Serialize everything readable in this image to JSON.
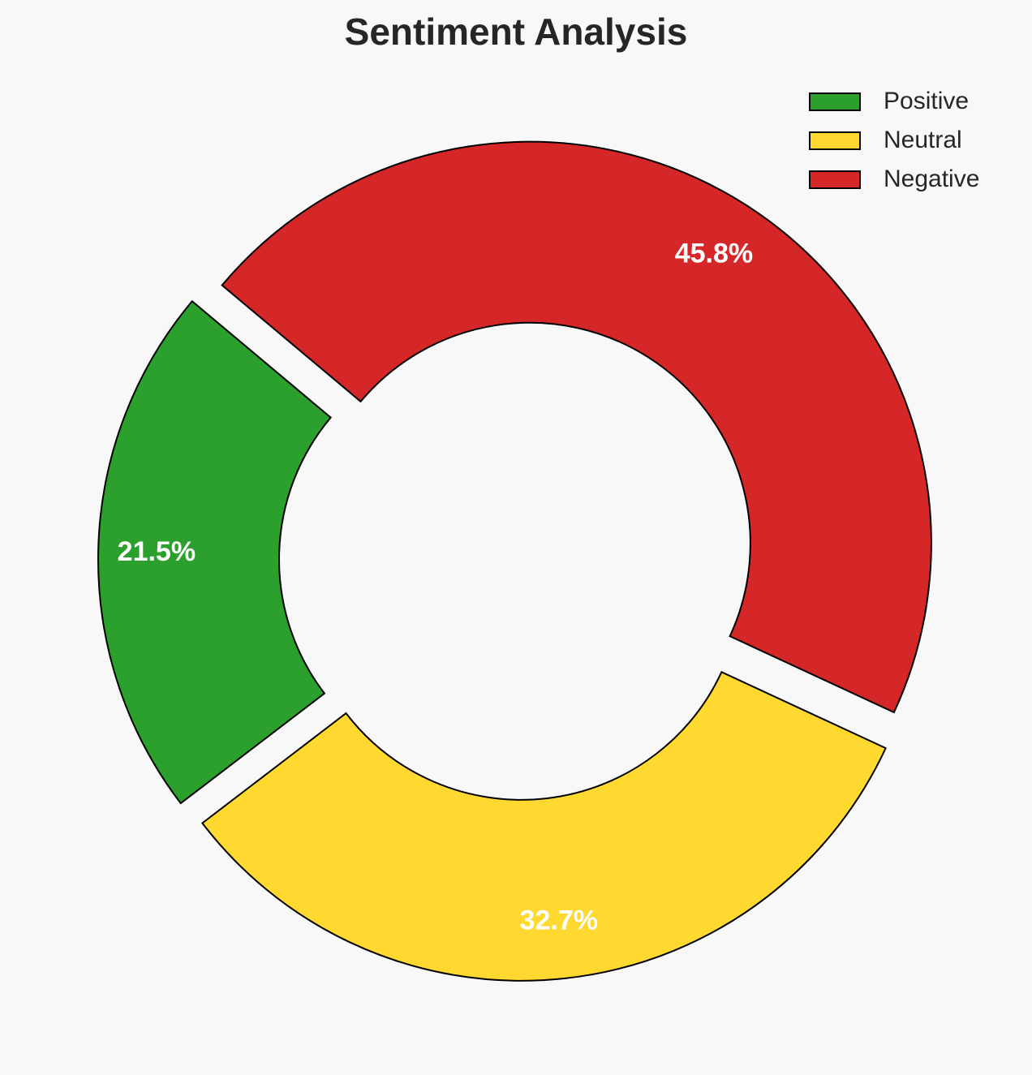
{
  "chart_data": {
    "type": "pie",
    "style": "donut",
    "title": "Sentiment Analysis",
    "categories": [
      "Positive",
      "Neutral",
      "Negative"
    ],
    "values": [
      21.5,
      32.7,
      45.8
    ],
    "labels": [
      "21.5%",
      "32.7%",
      "45.8%"
    ],
    "colors": [
      "#2ca02c",
      "#ffd92f",
      "#d62728"
    ],
    "exploded": true,
    "legend": {
      "placement": "top-right",
      "entries": [
        "Positive",
        "Neutral",
        "Negative"
      ]
    }
  }
}
